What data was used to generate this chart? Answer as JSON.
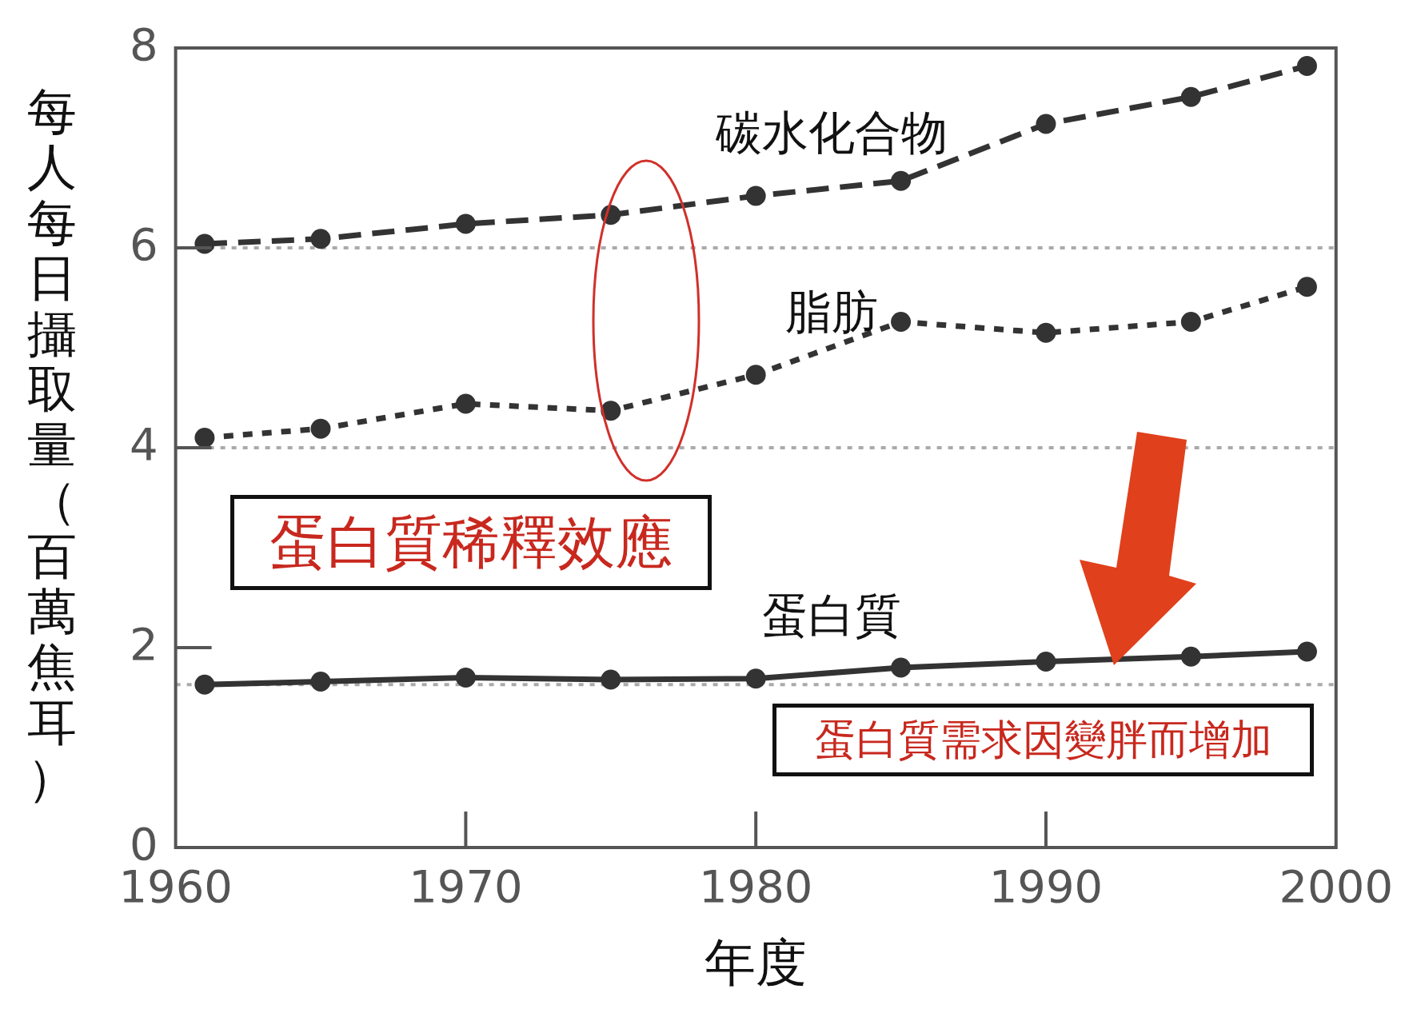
{
  "chart_data": {
    "type": "line",
    "xlabel": "年度",
    "ylabel": "每人每日攝取量（百萬焦耳）",
    "x": [
      1961,
      1965,
      1970,
      1975,
      1980,
      1985,
      1990,
      1995,
      1999
    ],
    "series": [
      {
        "name": "碳水化合物",
        "color": "#333333",
        "line_style": "dashed",
        "values": [
          6.04,
          6.09,
          6.24,
          6.33,
          6.52,
          6.67,
          7.24,
          7.51,
          7.82
        ]
      },
      {
        "name": "脂肪",
        "color": "#333333",
        "line_style": "dotted",
        "values": [
          4.1,
          4.19,
          4.44,
          4.37,
          4.73,
          5.26,
          5.15,
          5.26,
          5.61
        ]
      },
      {
        "name": "蛋白質",
        "color": "#333333",
        "line_style": "solid",
        "values": [
          1.63,
          1.66,
          1.7,
          1.68,
          1.69,
          1.8,
          1.86,
          1.91,
          1.96
        ]
      }
    ],
    "xlim": [
      1960,
      2000
    ],
    "xticks": [
      1960,
      1970,
      1980,
      1990,
      2000
    ],
    "ylim": [
      0,
      8
    ],
    "yticks": [
      0,
      2,
      4,
      6,
      8
    ],
    "ref_lines": [
      {
        "axis": "y",
        "value": 6,
        "color": "#aaaaaa",
        "line_style": "dotted"
      },
      {
        "axis": "y",
        "value": 4,
        "color": "#aaaaaa",
        "line_style": "dotted"
      },
      {
        "axis": "y",
        "value": 1.63,
        "color": "#aaaaaa",
        "line_style": "dotted"
      }
    ],
    "annotations": [
      "蛋白質稀釋效應",
      "蛋白質需求因變胖而增加"
    ],
    "marker": "circle",
    "grid": false,
    "legend": false
  }
}
